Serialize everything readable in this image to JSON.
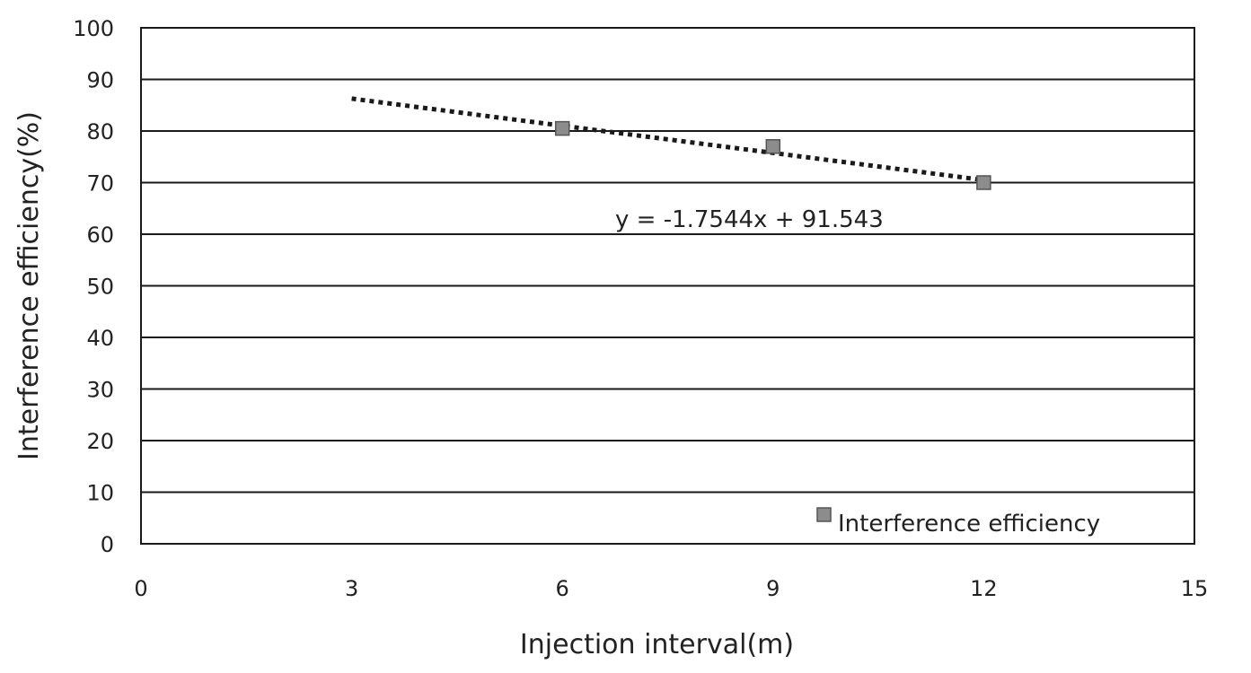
{
  "chart_data": {
    "type": "scatter",
    "title": "",
    "xlabel": "Injection interval(m)",
    "ylabel": "Interference efficiency(%)",
    "xlim": [
      0,
      15
    ],
    "ylim": [
      0,
      100
    ],
    "x_ticks": [
      "0",
      "3",
      "6",
      "9",
      "12",
      "15"
    ],
    "y_ticks": [
      "0",
      "10",
      "20",
      "30",
      "40",
      "50",
      "60",
      "70",
      "80",
      "90",
      "100"
    ],
    "grid": "horizontal",
    "legend_position": "bottom-right",
    "series": [
      {
        "name": "Interference efficiency",
        "color": "#8c8c8c",
        "marker": "square",
        "points": [
          {
            "x": 6,
            "y": 80.5
          },
          {
            "x": 9,
            "y": 77
          },
          {
            "x": 12,
            "y": 70
          }
        ]
      }
    ],
    "trendline": {
      "type": "linear",
      "style": "dotted",
      "color": "#1a1a1a",
      "slope": -1.7544,
      "intercept": 91.543,
      "x_range": [
        3,
        12
      ],
      "equation_label": "y = -1.7544x + 91.543"
    }
  }
}
